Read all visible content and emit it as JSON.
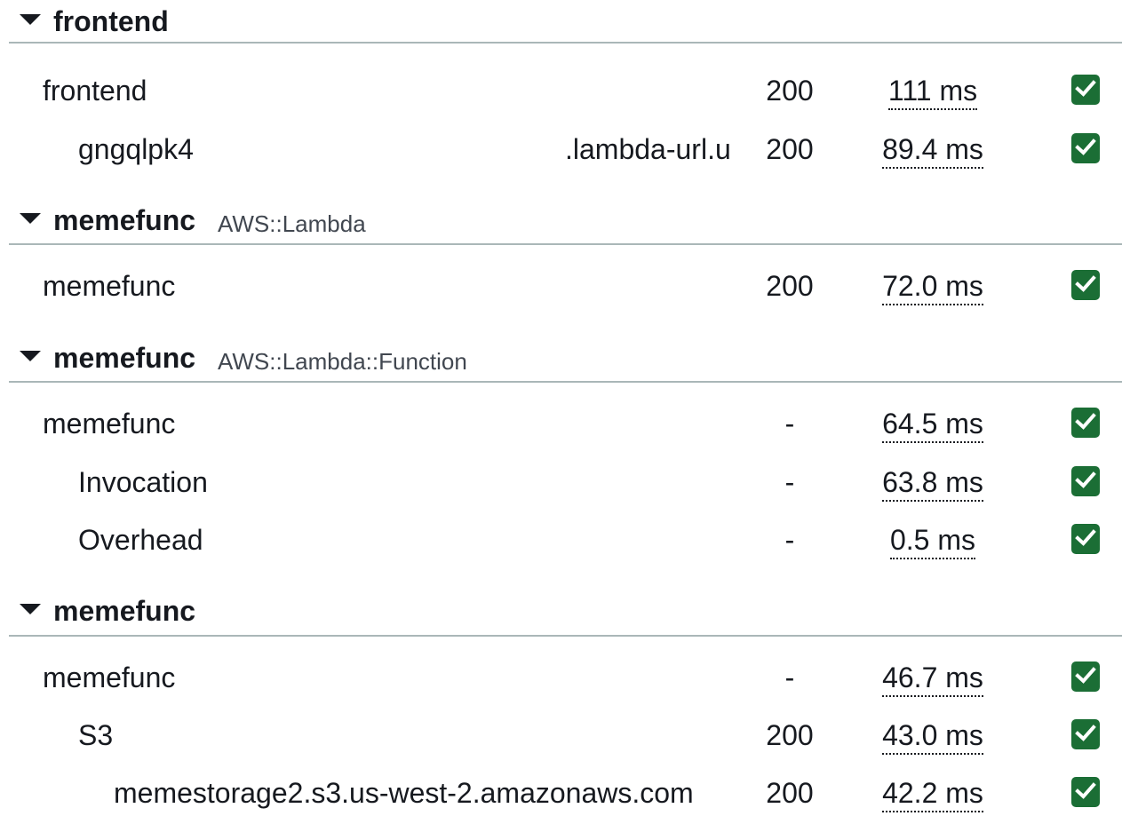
{
  "groups": [
    {
      "name": "frontend",
      "type": "",
      "rows": [
        {
          "name": "frontend",
          "url": "",
          "status": "200",
          "duration": "111 ms"
        },
        {
          "name": "gngqlpk4",
          "url": ".lambda-url.u",
          "status": "200",
          "duration": "89.4 ms"
        }
      ]
    },
    {
      "name": "memefunc",
      "type": "AWS::Lambda",
      "rows": [
        {
          "name": "memefunc",
          "url": "",
          "status": "200",
          "duration": "72.0 ms"
        }
      ]
    },
    {
      "name": "memefunc",
      "type": "AWS::Lambda::Function",
      "rows": [
        {
          "name": "memefunc",
          "url": "",
          "status": "-",
          "duration": "64.5 ms"
        },
        {
          "name": "Invocation",
          "url": "",
          "status": "-",
          "duration": "63.8 ms"
        },
        {
          "name": "Overhead",
          "url": "",
          "status": "-",
          "duration": "0.5 ms"
        }
      ]
    },
    {
      "name": "memefunc",
      "type": "",
      "rows": [
        {
          "name": "memefunc",
          "url": "",
          "status": "-",
          "duration": "46.7 ms"
        },
        {
          "name": "S3",
          "url": "",
          "status": "200",
          "duration": "43.0 ms"
        },
        {
          "name": "memestorage2.s3.us-west-2.amazonaws.com",
          "url": "",
          "status": "200",
          "duration": "42.2 ms"
        }
      ]
    }
  ],
  "icons": {
    "toggle": "caret-down-icon",
    "ok": "check-icon"
  },
  "colors": {
    "ok_badge": "#1b6e35",
    "divider": "#aab7b8",
    "text": "#16191f"
  }
}
